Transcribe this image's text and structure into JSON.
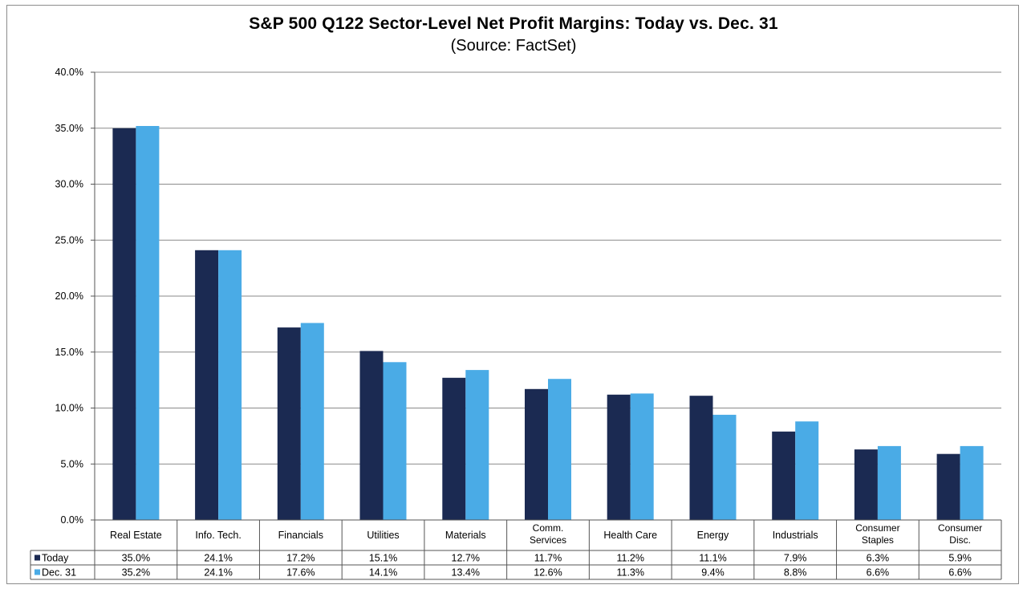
{
  "chart_data": {
    "type": "bar",
    "title": "S&P 500 Q122 Sector-Level Net Profit Margins: Today vs. Dec. 31",
    "subtitle": "(Source: FactSet)",
    "categories": [
      [
        "Real Estate"
      ],
      [
        "Info. Tech."
      ],
      [
        "Financials"
      ],
      [
        "Utilities"
      ],
      [
        "Materials"
      ],
      [
        "Comm.",
        "Services"
      ],
      [
        "Health Care"
      ],
      [
        "Energy"
      ],
      [
        "Industrials"
      ],
      [
        "Consumer",
        "Staples"
      ],
      [
        "Consumer",
        "Disc."
      ]
    ],
    "series": [
      {
        "name": "Today",
        "color": "#1b2a52",
        "values": [
          35.0,
          24.1,
          17.2,
          15.1,
          12.7,
          11.7,
          11.2,
          11.1,
          7.9,
          6.3,
          5.9
        ],
        "labels": [
          "35.0%",
          "24.1%",
          "17.2%",
          "15.1%",
          "12.7%",
          "11.7%",
          "11.2%",
          "11.1%",
          "7.9%",
          "6.3%",
          "5.9%"
        ]
      },
      {
        "name": "Dec. 31",
        "color": "#4aabe6",
        "values": [
          35.2,
          24.1,
          17.6,
          14.1,
          13.4,
          12.6,
          11.3,
          9.4,
          8.8,
          6.6,
          6.6
        ],
        "labels": [
          "35.2%",
          "24.1%",
          "17.6%",
          "14.1%",
          "13.4%",
          "12.6%",
          "11.3%",
          "9.4%",
          "8.8%",
          "6.6%",
          "6.6%"
        ]
      }
    ],
    "ylim": [
      0,
      40
    ],
    "yticks": [
      "0.0%",
      "5.0%",
      "10.0%",
      "15.0%",
      "20.0%",
      "25.0%",
      "30.0%",
      "35.0%",
      "40.0%"
    ],
    "grid": true,
    "legend": "data-table-below"
  }
}
